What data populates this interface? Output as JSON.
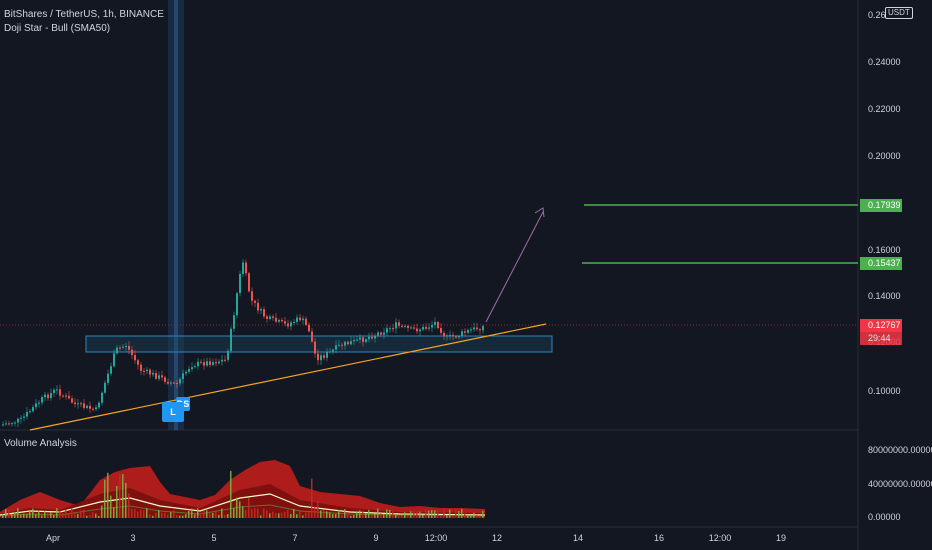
{
  "header": {
    "title": "BitShares / TetherUS, 1h, BINANCE",
    "indicator": "Doji Star - Bull (SMA50)",
    "currency_badge": "USDT"
  },
  "price_axis": {
    "ticks": [
      "0.26000",
      "0.24000",
      "0.22000",
      "0.20000",
      "0.16000",
      "0.14000",
      "0.12000",
      "0.10000"
    ],
    "target_1": "0.17939",
    "target_2": "0.15437",
    "last_price": "0.12767",
    "countdown": "29:44",
    "colors": {
      "target": "#4caf50",
      "last": "#f23645",
      "tag_text": "#ffffff"
    }
  },
  "volume_pane": {
    "title": "Volume Analysis",
    "ticks": [
      "80000000.00000",
      "40000000.00000",
      "0.00000"
    ]
  },
  "time_axis": {
    "labels": [
      "Apr",
      "3",
      "5",
      "7",
      "9",
      "12:00",
      "12",
      "14",
      "16",
      "12:00",
      "19"
    ]
  },
  "markers": {
    "pattern_a": "DS",
    "pattern_b": "L"
  }
}
